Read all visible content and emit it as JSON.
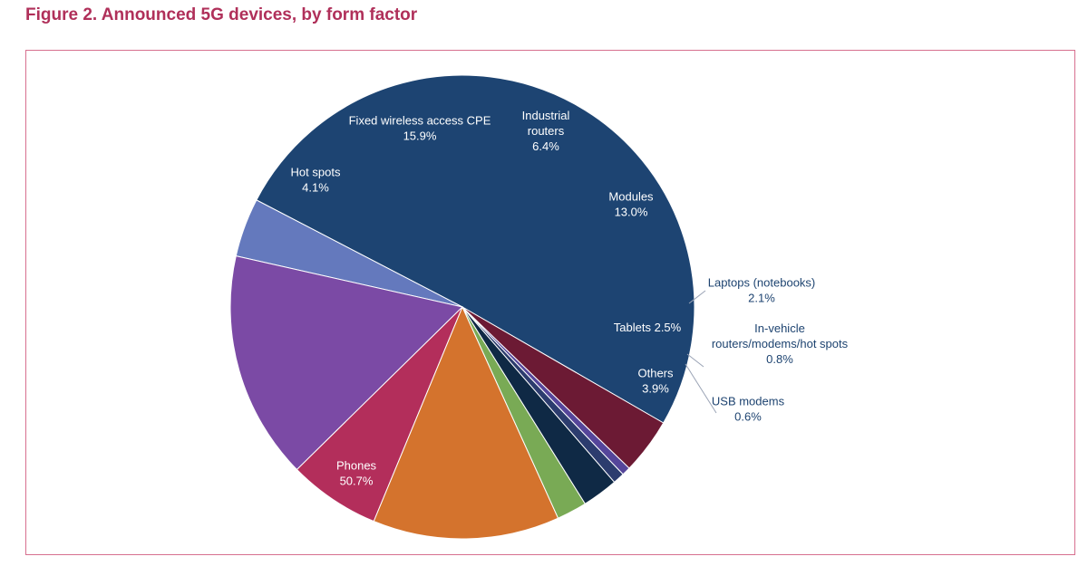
{
  "title": "Figure 2. Announced 5G devices, by form factor",
  "colors": {
    "title": "#b0305a",
    "frame": "#d7708f",
    "label_outside": "#1d4370",
    "label_inside": "#ffffff"
  },
  "chart_data": {
    "type": "pie",
    "title": "Figure 2. Announced 5G devices, by form factor",
    "start_angle_deg": -30,
    "direction": "counterclockwise",
    "slices": [
      {
        "label": "Phones",
        "value": 50.7,
        "value_label": "50.7%",
        "color": "#1d4472",
        "label_position": "inside"
      },
      {
        "label": "Hot spots",
        "value": 4.1,
        "value_label": "4.1%",
        "color": "#6479bd",
        "label_position": "inside"
      },
      {
        "label": "Fixed wireless access CPE",
        "value": 15.9,
        "value_label": "15.9%",
        "color": "#7b4aa5",
        "label_position": "inside"
      },
      {
        "label": "Industrial routers",
        "value": 6.4,
        "value_label": "6.4%",
        "color": "#b32e5b",
        "label_position": "inside"
      },
      {
        "label": "Modules",
        "value": 13.0,
        "value_label": "13.0%",
        "color": "#d4732d",
        "label_position": "inside"
      },
      {
        "label": "Laptops (notebooks)",
        "value": 2.1,
        "value_label": "2.1%",
        "color": "#79aa55",
        "label_position": "outside"
      },
      {
        "label": "Tablets",
        "value": 2.5,
        "value_label": "2.5%",
        "color": "#0f2945",
        "label_position": "inside"
      },
      {
        "label": "In-vehicle routers/modems/hot spots",
        "value": 0.8,
        "value_label": "0.8%",
        "color": "#2c3c6e",
        "label_position": "outside"
      },
      {
        "label": "USB modems",
        "value": 0.6,
        "value_label": "0.6%",
        "color": "#55459a",
        "label_position": "outside"
      },
      {
        "label": "Others",
        "value": 3.9,
        "value_label": "3.9%",
        "color": "#6c1a34",
        "label_position": "inside"
      }
    ]
  }
}
